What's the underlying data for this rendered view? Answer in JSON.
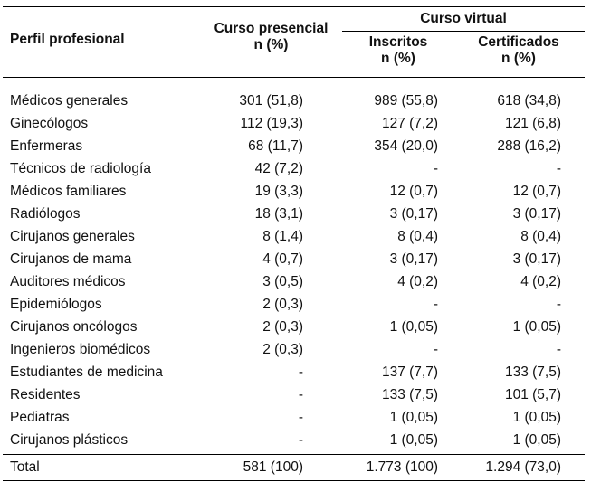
{
  "table": {
    "headers": {
      "perfil": "Perfil profesional",
      "presencial_line1": "Curso presencial",
      "presencial_line2": "n (%)",
      "virtual": "Curso virtual",
      "inscritos_line1": "Inscritos",
      "inscritos_line2": "n (%)",
      "certificados_line1": "Certificados",
      "certificados_line2": "n (%)"
    },
    "rows": [
      {
        "perfil": "Médicos generales",
        "presencial": "301 (51,8)",
        "inscritos": "989 (55,8)",
        "certificados": "618 (34,8)"
      },
      {
        "perfil": "Ginecólogos",
        "presencial": "112 (19,3)",
        "inscritos": "127 (7,2)",
        "certificados": "121 (6,8)"
      },
      {
        "perfil": "Enfermeras",
        "presencial": "68 (11,7)",
        "inscritos": "354 (20,0)",
        "certificados": "288 (16,2)"
      },
      {
        "perfil": "Técnicos de radiología",
        "presencial": "42 (7,2)",
        "inscritos": "-",
        "certificados": "-"
      },
      {
        "perfil": "Médicos familiares",
        "presencial": "19 (3,3)",
        "inscritos": "12 (0,7)",
        "certificados": "12 (0,7)"
      },
      {
        "perfil": "Radiólogos",
        "presencial": "18 (3,1)",
        "inscritos": "3 (0,17)",
        "certificados": "3 (0,17)"
      },
      {
        "perfil": "Cirujanos generales",
        "presencial": "8 (1,4)",
        "inscritos": "8 (0,4)",
        "certificados": "8 (0,4)"
      },
      {
        "perfil": "Cirujanos de mama",
        "presencial": "4 (0,7)",
        "inscritos": "3 (0,17)",
        "certificados": "3 (0,17)"
      },
      {
        "perfil": "Auditores médicos",
        "presencial": "3 (0,5)",
        "inscritos": "4 (0,2)",
        "certificados": "4 (0,2)"
      },
      {
        "perfil": "Epidemiólogos",
        "presencial": "2 (0,3)",
        "inscritos": "-",
        "certificados": "-"
      },
      {
        "perfil": "Cirujanos oncólogos",
        "presencial": "2 (0,3)",
        "inscritos": "1 (0,05)",
        "certificados": "1 (0,05)"
      },
      {
        "perfil": "Ingenieros biomédicos",
        "presencial": "2 (0,3)",
        "inscritos": "-",
        "certificados": "-"
      },
      {
        "perfil": "Estudiantes de medicina",
        "presencial": "-",
        "inscritos": "137 (7,7)",
        "certificados": "133 (7,5)"
      },
      {
        "perfil": "Residentes",
        "presencial": "-",
        "inscritos": "133 (7,5)",
        "certificados": "101 (5,7)"
      },
      {
        "perfil": "Pediatras",
        "presencial": "-",
        "inscritos": "1 (0,05)",
        "certificados": "1 (0,05)"
      },
      {
        "perfil": "Cirujanos plásticos",
        "presencial": "-",
        "inscritos": "1 (0,05)",
        "certificados": "1 (0,05)"
      }
    ],
    "total": {
      "perfil": "Total",
      "presencial": "581 (100)",
      "inscritos": "1.773 (100)",
      "certificados": "1.294 (73,0)"
    }
  }
}
